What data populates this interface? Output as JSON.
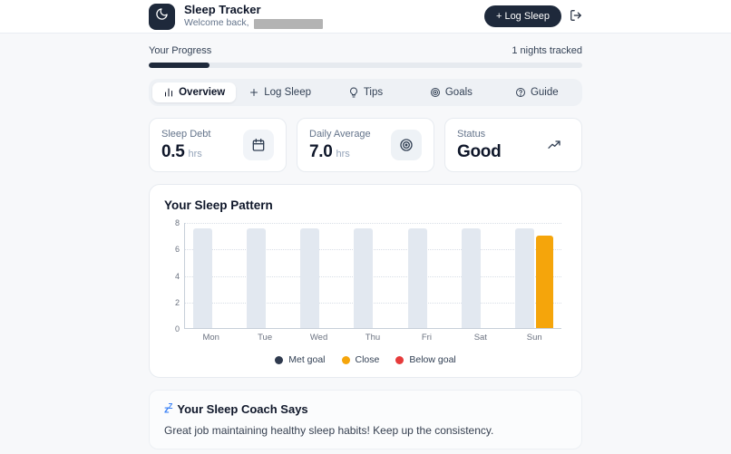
{
  "header": {
    "app_title": "Sleep Tracker",
    "welcome_label": "Welcome back,",
    "log_sleep_button": "+ Log Sleep",
    "logout_icon": "log-out-icon",
    "logo_icon": "moon-icon"
  },
  "progress": {
    "label": "Your Progress",
    "nights_tracked": "1 nights tracked",
    "percent": 14
  },
  "tabs": [
    {
      "label": "Overview",
      "icon": "bar-chart",
      "active": true
    },
    {
      "label": "Log Sleep",
      "icon": "plus",
      "active": false
    },
    {
      "label": "Tips",
      "icon": "lightbulb",
      "active": false
    },
    {
      "label": "Goals",
      "icon": "target",
      "active": false
    },
    {
      "label": "Guide",
      "icon": "help-circle",
      "active": false
    }
  ],
  "stats": [
    {
      "label": "Sleep Debt",
      "value": "0.5",
      "unit": "hrs",
      "icon": "calendar",
      "icon_bg": "#f1f4f8"
    },
    {
      "label": "Daily Average",
      "value": "7.0",
      "unit": "hrs",
      "icon": "target",
      "icon_bg": "#eef2f6"
    },
    {
      "label": "Status",
      "value": "Good",
      "unit": "",
      "icon": "trending-up",
      "icon_bg": "#ffffff"
    }
  ],
  "chart_data": {
    "type": "bar",
    "title": "Your Sleep Pattern",
    "categories": [
      "Mon",
      "Tue",
      "Wed",
      "Thu",
      "Fri",
      "Sat",
      "Sun"
    ],
    "series": [
      {
        "name": "goal",
        "color": "#e2e8f0",
        "values": [
          7.5,
          7.5,
          7.5,
          7.5,
          7.5,
          7.5,
          7.5
        ]
      },
      {
        "name": "actual",
        "values": [
          null,
          null,
          null,
          null,
          null,
          null,
          7.0
        ],
        "colors": [
          null,
          null,
          null,
          null,
          null,
          null,
          "#f5a50b"
        ]
      }
    ],
    "xlabel": "",
    "ylabel": "",
    "ylim": [
      0,
      8
    ],
    "yticks": [
      0,
      2,
      4,
      6,
      8
    ],
    "grid": "horizontal-dotted",
    "legend_position": "bottom-center",
    "legend": [
      {
        "label": "Met goal",
        "color": "#2f3a4e"
      },
      {
        "label": "Close",
        "color": "#f5a50b"
      },
      {
        "label": "Below goal",
        "color": "#e63b3b"
      }
    ]
  },
  "coach": {
    "icon": "zzz-icon",
    "title": "Your Sleep Coach Says",
    "message": "Great job maintaining healthy sleep habits! Keep up the consistency."
  },
  "colors": {
    "accent_dark": "#1e293b",
    "page_bg": "#f7f8fa",
    "card_border": "#e7ebf0",
    "muted_text": "#64748b",
    "bar_goal": "#e2e8f0",
    "bar_close": "#f5a50b",
    "redaction_gray": "#b3b3b3",
    "coach_icon_blue": "#3b82f6"
  }
}
